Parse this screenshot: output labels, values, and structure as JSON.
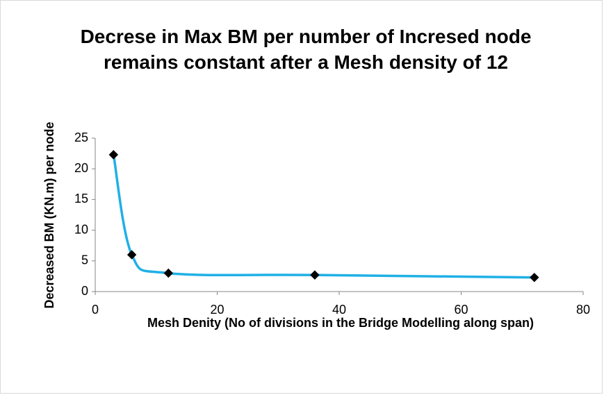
{
  "chart_data": {
    "type": "scatter",
    "title": "Decrese in Max BM per number of Incresed node remains constant after a Mesh density of 12",
    "x_label": "Mesh Denity (No of divisions in the Bridge Modelling along span)",
    "y_label": "Decreased BM (KN.m) per  node",
    "series": [
      {
        "name": "Decreased BM per node",
        "color": "#1fb0e6",
        "marker_color": "#000000",
        "x": [
          3,
          6,
          12,
          36,
          72
        ],
        "values": [
          22.3,
          6.0,
          3.0,
          2.7,
          2.3
        ]
      }
    ],
    "xlim": [
      0,
      80
    ],
    "xticks": [
      0,
      20,
      40,
      60,
      80
    ],
    "ylim": [
      0,
      25
    ],
    "yticks": [
      0,
      5,
      10,
      15,
      20,
      25
    ],
    "grid": false,
    "smooth": true
  }
}
